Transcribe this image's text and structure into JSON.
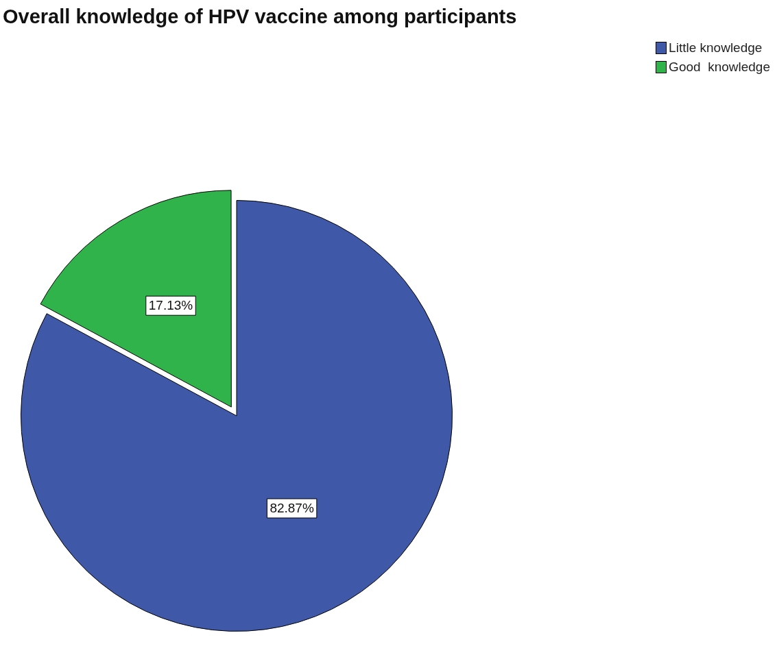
{
  "chart_data": {
    "type": "pie",
    "title": "Overall knowledge of HPV vaccine among participants",
    "categories": [
      "Little knowledge",
      "Good  knowledge"
    ],
    "values": [
      82.87,
      17.13
    ],
    "colors": [
      "#3f58a8",
      "#2fb34a"
    ],
    "value_labels": [
      "82.87%",
      "17.13%"
    ],
    "legend": "top right"
  }
}
